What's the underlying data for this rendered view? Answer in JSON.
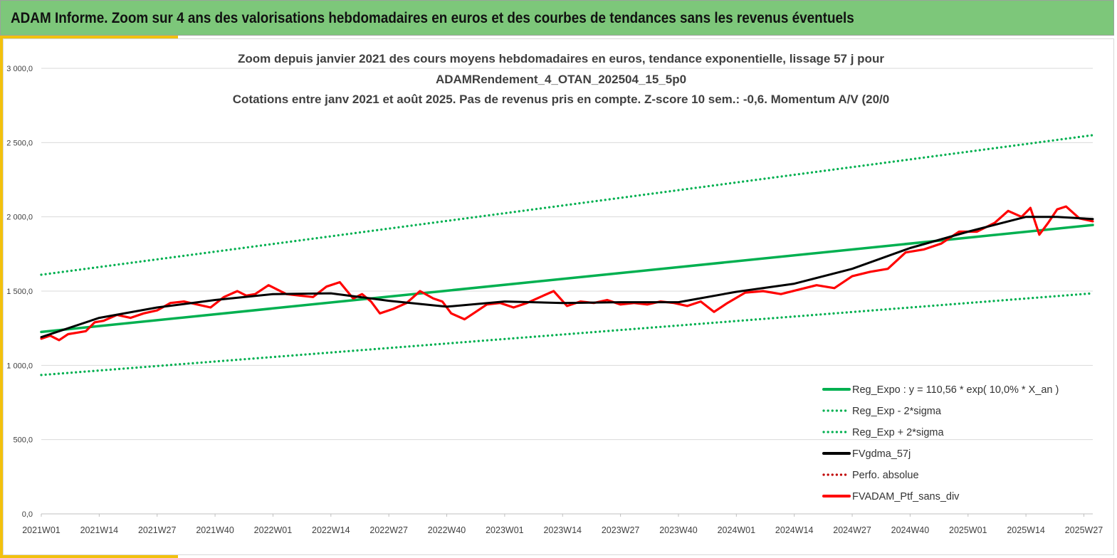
{
  "header": {
    "title": "ADAM Informe. Zoom sur 4 ans des valorisations hebdomadaires en euros et des courbes de tendances sans les revenus éventuels"
  },
  "colors": {
    "banner": "#7dc77a",
    "accent": "#f2c10d",
    "trend": "#00b050",
    "smooth": "#000000",
    "portfolio": "#ff0000"
  },
  "chart_data": {
    "type": "line",
    "title_lines": [
      "Zoom depuis janvier 2021 des cours moyens hebdomadaires en euros, tendance exponentielle, lissage 57 j pour",
      "ADAMRendement_4_OTAN_202504_15_5p0",
      "Cotations entre janv 2021 et août 2025. Pas de revenus pris en compte. Z-score 10 sem.: -0,6. Momentum A/V (20/0"
    ],
    "ylim": [
      0,
      3000
    ],
    "y_ticks": [
      "0,0",
      "500,0",
      "1 000,0",
      "1 500,0",
      "2 000,0",
      "2 500,0",
      "3 000,0"
    ],
    "x_ticks": [
      "2021W01",
      "2021W14",
      "2021W27",
      "2021W40",
      "2022W01",
      "2022W14",
      "2022W27",
      "2022W40",
      "2023W01",
      "2023W14",
      "2023W27",
      "2023W40",
      "2024W01",
      "2024W14",
      "2024W27",
      "2024W40",
      "2025W01",
      "2025W14",
      "2025W27"
    ],
    "x_weeks_total": 237,
    "grid": "horizontal",
    "legend_position": "bottom-right",
    "series": [
      {
        "name": "Reg_Expo : y = 110,56 * exp( 10,0% *  X_an )",
        "style": "solid",
        "color": "#00b050",
        "x": [
          0,
          236
        ],
        "values": [
          1225,
          1945
        ]
      },
      {
        "name": "Reg_Exp - 2*sigma",
        "style": "dotted",
        "color": "#00b050",
        "x": [
          0,
          236
        ],
        "values": [
          935,
          1485
        ]
      },
      {
        "name": "Reg_Exp + 2*sigma",
        "style": "dotted",
        "color": "#00b050",
        "x": [
          0,
          236
        ],
        "values": [
          1610,
          2550
        ]
      },
      {
        "name": "FVgdma_57j",
        "style": "solid",
        "color": "#000000",
        "x": [
          0,
          13,
          26,
          39,
          52,
          65,
          78,
          91,
          104,
          117,
          130,
          143,
          156,
          169,
          182,
          195,
          208,
          221,
          228,
          236
        ],
        "values": [
          1190,
          1320,
          1390,
          1440,
          1480,
          1485,
          1435,
          1395,
          1430,
          1420,
          1425,
          1425,
          1495,
          1550,
          1650,
          1790,
          1900,
          2000,
          2000,
          1985
        ]
      },
      {
        "name": "Perfo. absolue",
        "style": "dotted",
        "color": "#c00000",
        "x": [],
        "values": []
      },
      {
        "name": "FVADAM_Ptf_sans_div",
        "style": "solid",
        "color": "#ff0000",
        "x": [
          0,
          2,
          4,
          6,
          8,
          10,
          12,
          14,
          17,
          20,
          23,
          26,
          29,
          32,
          35,
          38,
          41,
          44,
          46,
          48,
          51,
          53,
          55,
          58,
          61,
          64,
          67,
          70,
          72,
          74,
          76,
          79,
          82,
          85,
          88,
          90,
          92,
          95,
          97,
          100,
          103,
          106,
          109,
          112,
          115,
          118,
          121,
          124,
          127,
          130,
          133,
          136,
          139,
          142,
          145,
          148,
          151,
          154,
          158,
          162,
          166,
          170,
          174,
          178,
          182,
          186,
          190,
          194,
          198,
          202,
          206,
          210,
          214,
          217,
          220,
          222,
          224,
          226,
          228,
          230,
          233,
          236
        ],
        "values": [
          1180,
          1200,
          1170,
          1210,
          1220,
          1230,
          1290,
          1300,
          1340,
          1320,
          1350,
          1370,
          1420,
          1430,
          1410,
          1390,
          1460,
          1500,
          1470,
          1480,
          1540,
          1510,
          1480,
          1470,
          1460,
          1530,
          1560,
          1450,
          1480,
          1430,
          1350,
          1380,
          1420,
          1500,
          1450,
          1430,
          1350,
          1310,
          1350,
          1410,
          1420,
          1390,
          1420,
          1460,
          1500,
          1400,
          1430,
          1420,
          1440,
          1410,
          1420,
          1410,
          1430,
          1420,
          1400,
          1430,
          1360,
          1420,
          1490,
          1500,
          1480,
          1510,
          1540,
          1520,
          1600,
          1630,
          1650,
          1760,
          1780,
          1820,
          1900,
          1900,
          1960,
          2040,
          2000,
          2060,
          1880,
          1960,
          2050,
          2070,
          1990,
          1970
        ]
      }
    ]
  }
}
